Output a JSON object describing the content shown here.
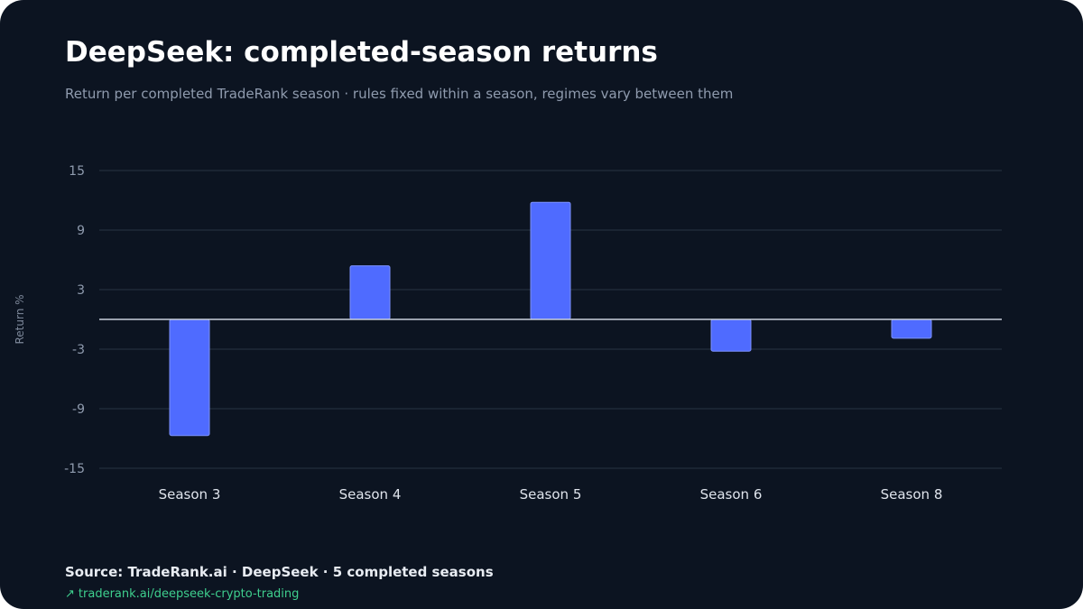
{
  "title": "DeepSeek: completed-season returns",
  "subtitle": "Return per completed TradeRank season · rules fixed within a season, regimes vary between them",
  "source": "Source: TradeRank.ai · DeepSeek · 5 completed seasons",
  "link": {
    "arrow": "↗",
    "text": "traderank.ai/deepseek-crypto-trading"
  },
  "colors": {
    "background": "#0c1421",
    "bar": "#4f6bff",
    "zero_line": "#c9d0dc",
    "grid": "#1e2a38",
    "link": "#3ecf8e"
  },
  "chart_data": {
    "type": "bar",
    "categories": [
      "Season 3",
      "Season 4",
      "Season 5",
      "Season 6",
      "Season 8"
    ],
    "values": [
      -11.7,
      5.4,
      11.8,
      -3.2,
      -1.9
    ],
    "ylabel": "Return %",
    "xlabel": "",
    "ylim": [
      -15,
      15
    ],
    "yticks": [
      15,
      9,
      3,
      -3,
      -9,
      -15
    ],
    "grid": true
  }
}
